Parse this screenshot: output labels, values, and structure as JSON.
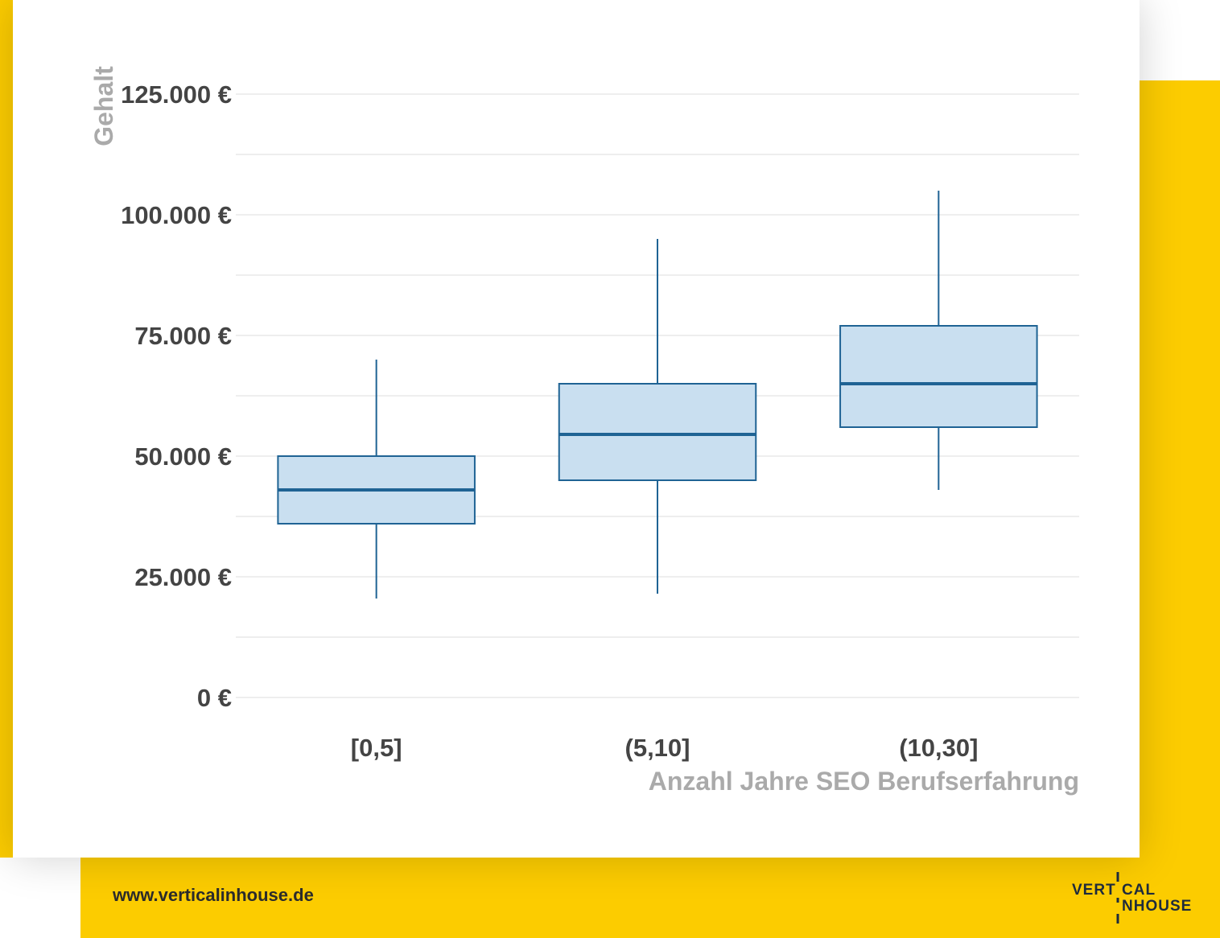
{
  "colors": {
    "accent_yellow": "#fccc00",
    "box_fill": "#c9dff0",
    "box_stroke": "#1f6394",
    "tick_text": "#444444",
    "axis_title": "#aaaaaa",
    "grid": "#dddddd"
  },
  "chart_data": {
    "type": "boxplot",
    "xlabel": "Anzahl Jahre SEO Berufserfahrung",
    "ylabel": "Gehalt",
    "ylim": [
      0,
      125000
    ],
    "y_ticks": [
      0,
      25000,
      50000,
      75000,
      100000,
      125000
    ],
    "y_tick_labels": [
      "0 €",
      "25.000 €",
      "50.000 €",
      "75.000 €",
      "100.000 €",
      "125.000 €"
    ],
    "grid": true,
    "categories": [
      "[0,5]",
      "(5,10]",
      "(10,30]"
    ],
    "boxes": [
      {
        "category": "[0,5]",
        "whisker_low": 20500,
        "q1": 36000,
        "median": 43000,
        "q3": 50000,
        "whisker_high": 70000
      },
      {
        "category": "(5,10]",
        "whisker_low": 21500,
        "q1": 45000,
        "median": 54500,
        "q3": 65000,
        "whisker_high": 95000
      },
      {
        "category": "(10,30]",
        "whisker_low": 43000,
        "q1": 56000,
        "median": 65000,
        "q3": 77000,
        "whisker_high": 105000
      }
    ]
  },
  "footer": {
    "url": "www.verticalinhouse.de",
    "logo_line1_left": "VERT",
    "logo_line1_right": "CAL",
    "logo_line2": "NHOUSE"
  }
}
